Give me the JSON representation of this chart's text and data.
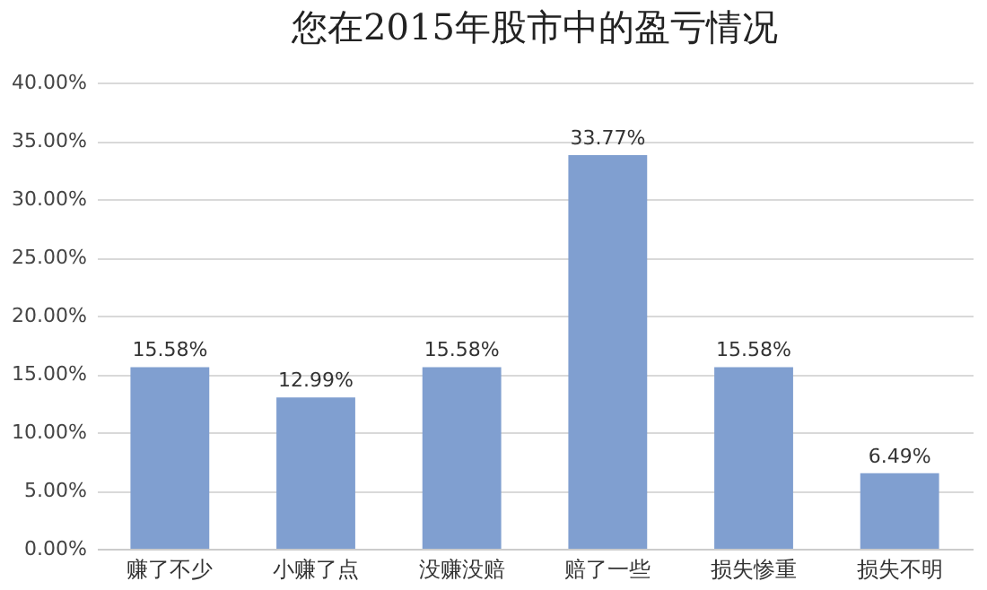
{
  "chart_data": {
    "type": "bar",
    "title": "您在2015年股市中的盈亏情况",
    "categories": [
      "赚了不少",
      "小赚了点",
      "没赚没赔",
      "赔了一些",
      "损失惨重",
      "损失不明"
    ],
    "values": [
      15.58,
      12.99,
      15.58,
      33.77,
      15.58,
      6.49
    ],
    "value_labels": [
      "15.58%",
      "12.99%",
      "15.58%",
      "33.77%",
      "15.58%",
      "6.49%"
    ],
    "color": "#809fd0",
    "ylim": [
      0,
      40
    ],
    "yticks": [
      {
        "value": 0,
        "label": "0.00%"
      },
      {
        "value": 5,
        "label": "5.00%"
      },
      {
        "value": 10,
        "label": "10.00%"
      },
      {
        "value": 15,
        "label": "15.00%"
      },
      {
        "value": 20,
        "label": "20.00%"
      },
      {
        "value": 25,
        "label": "25.00%"
      },
      {
        "value": 30,
        "label": "30.00%"
      },
      {
        "value": 35,
        "label": "35.00%"
      },
      {
        "value": 40,
        "label": "40.00%"
      }
    ],
    "grid": "y"
  }
}
